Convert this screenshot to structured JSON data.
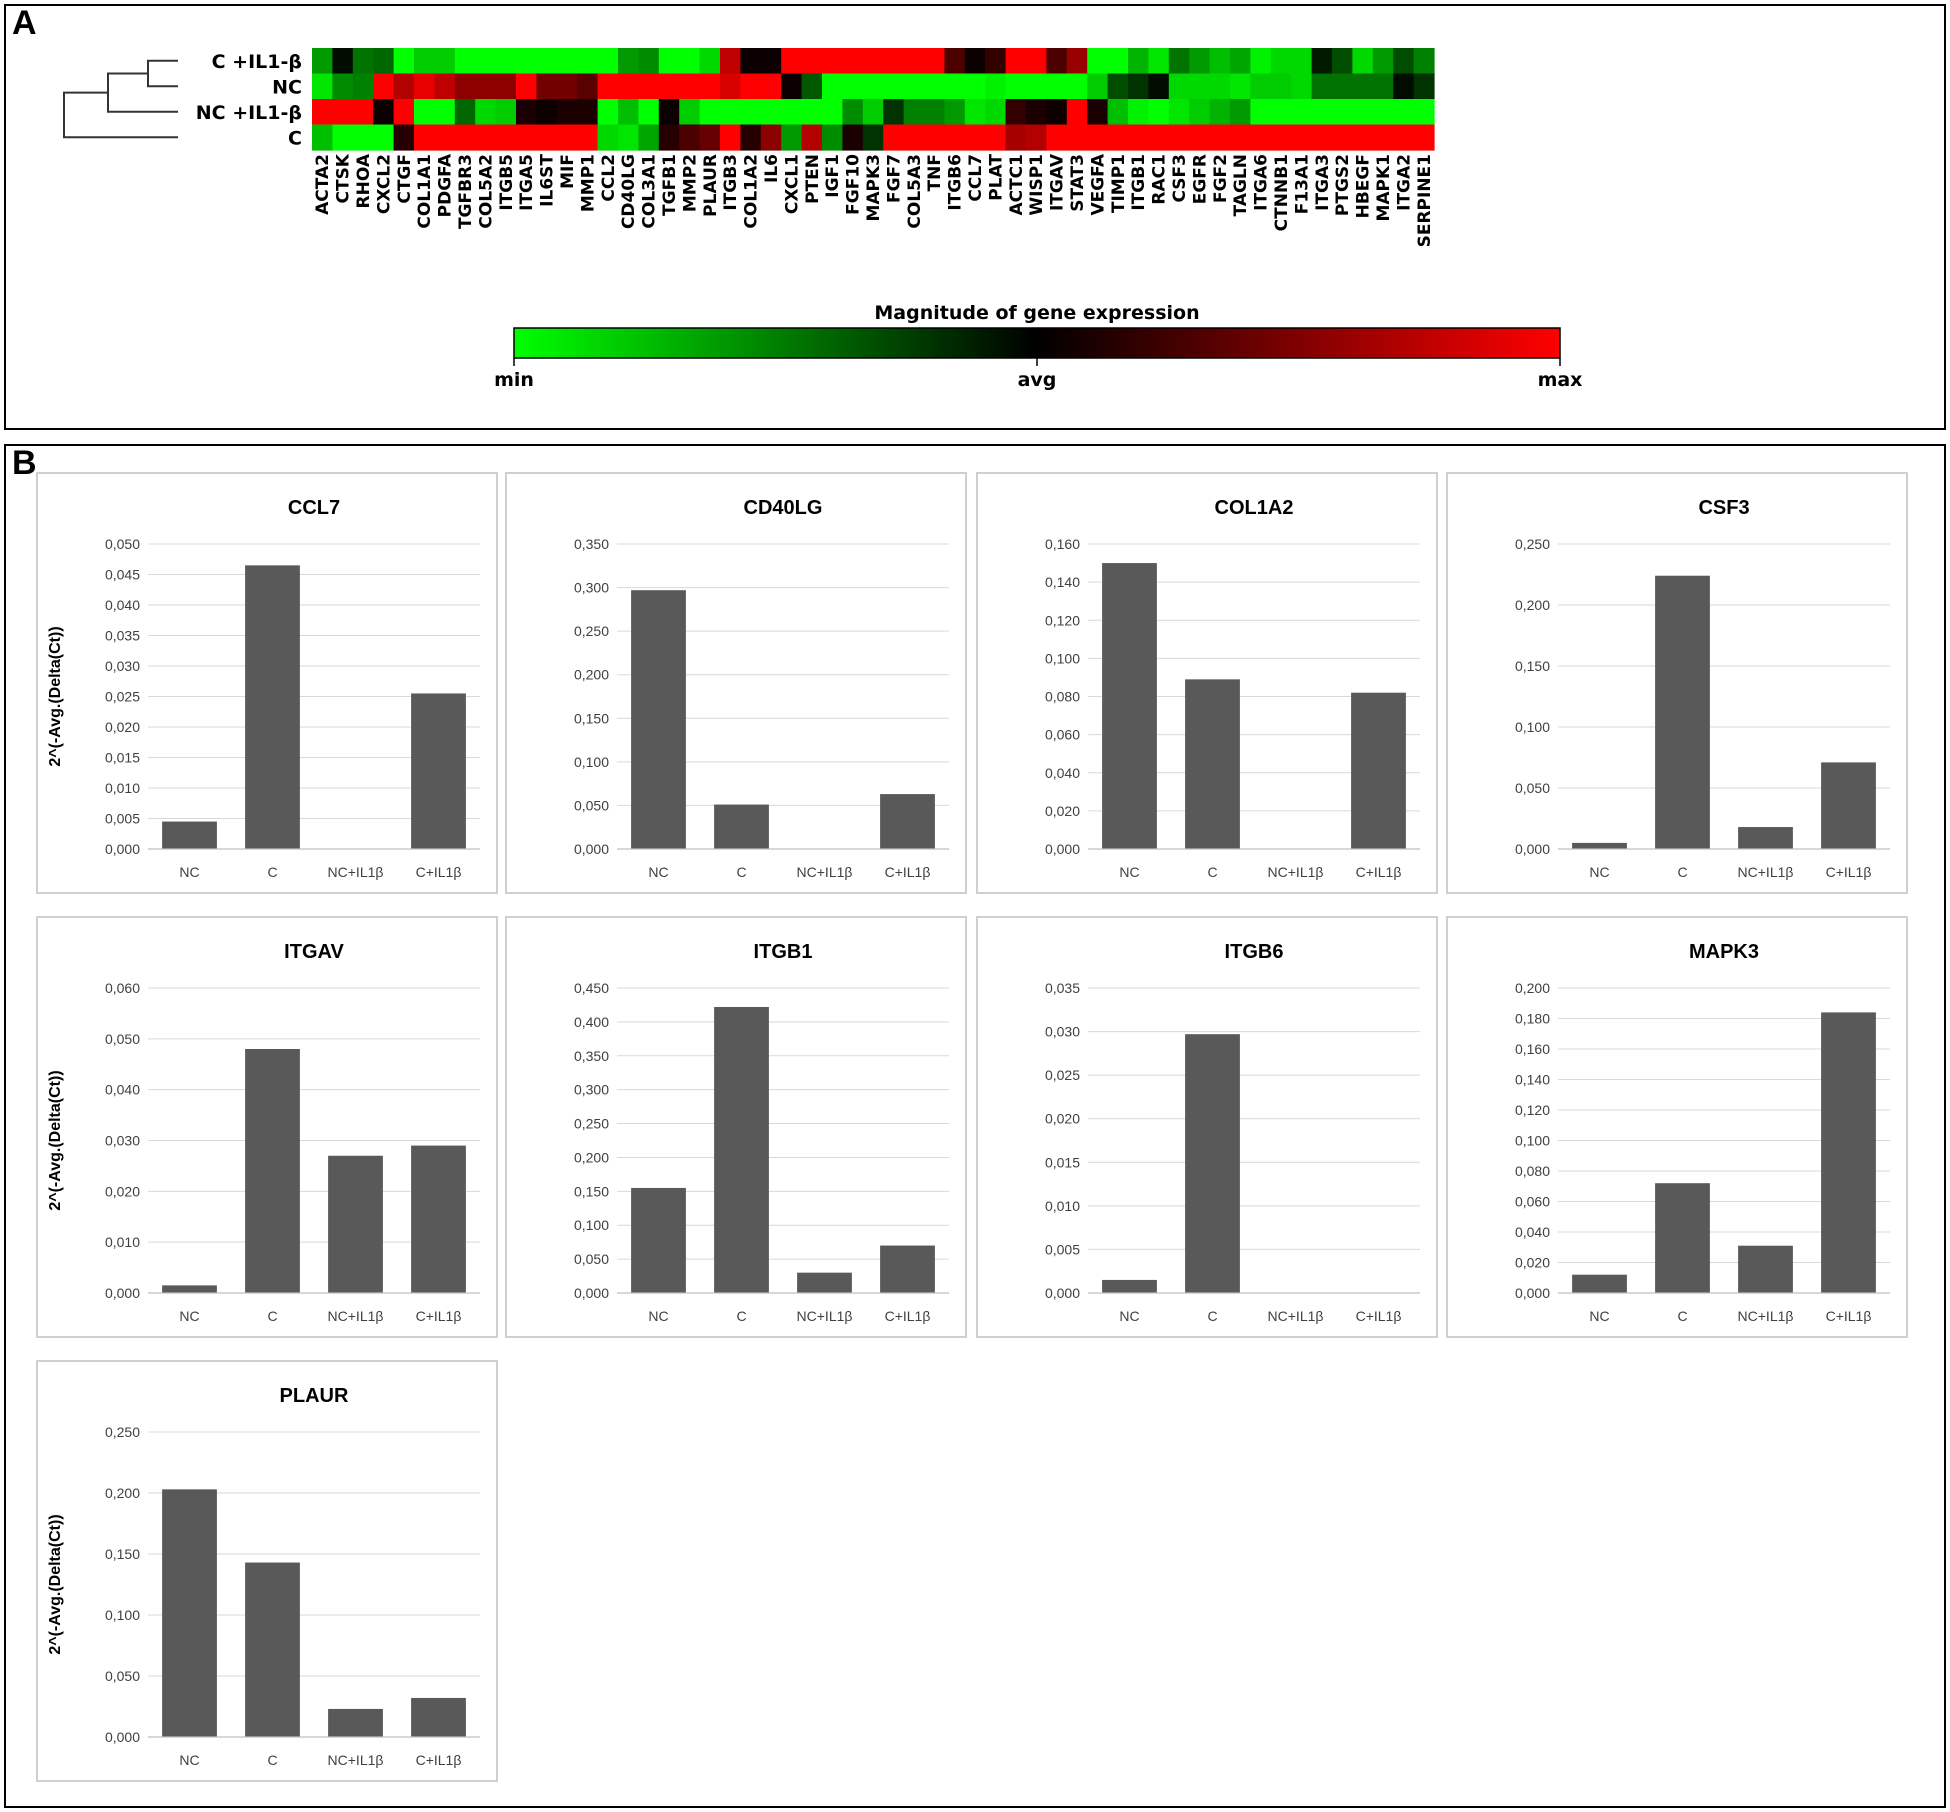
{
  "panel_a": {
    "label": "A",
    "heatmap": {
      "rows": [
        "C +IL1-β",
        "NC",
        "NC +IL1-β",
        "C"
      ],
      "genes": [
        "ACTA2",
        "CTSK",
        "RHOA",
        "CXCL2",
        "CTGF",
        "COL1A1",
        "PDGFA",
        "TGFBR3",
        "COL5A2",
        "ITGB5",
        "ITGA5",
        "IL6ST",
        "MIF",
        "MMP1",
        "CCL2",
        "CD40LG",
        "COL3A1",
        "TGFB1",
        "MMP2",
        "PLAUR",
        "ITGB3",
        "COL1A2",
        "IL6",
        "CXCL1",
        "PTEN",
        "IGF1",
        "FGF10",
        "MAPK3",
        "FGF7",
        "COL5A3",
        "TNF",
        "ITGB6",
        "CCL7",
        "PLAT",
        "ACTC1",
        "WISP1",
        "ITGAV",
        "STAT3",
        "VEGFA",
        "TIMP1",
        "ITGB1",
        "RAC1",
        "CSF3",
        "EGFR",
        "FGF2",
        "TAGLN",
        "ITGA6",
        "CTNNB1",
        "F13A1",
        "ITGA3",
        "PTGS2",
        "HBEGF",
        "MAPK1",
        "ITGA2",
        "SERPINE1"
      ],
      "scale_note": "values -1 (min, green) .. 0 (avg, black) .. 1 (max, red)",
      "values": [
        [
          -0.6,
          -0.05,
          -0.45,
          -0.4,
          -1,
          -0.8,
          -0.8,
          -1,
          -1,
          -1,
          -1,
          -1,
          -1,
          -1,
          -1,
          -0.6,
          -0.55,
          -1,
          -1,
          -0.85,
          0.75,
          0.05,
          0.05,
          1,
          1,
          1,
          1,
          1,
          1,
          1,
          1,
          0.3,
          0.05,
          0.2,
          1,
          1,
          0.3,
          0.6,
          -1,
          -1,
          -0.7,
          -0.9,
          -0.45,
          -0.6,
          -0.75,
          -0.65,
          -0.95,
          -0.85,
          -0.85,
          -0.1,
          -0.3,
          -0.85,
          -0.6,
          -0.3,
          -0.5
        ],
        [
          -0.9,
          -0.55,
          -0.5,
          1,
          0.7,
          0.9,
          0.75,
          0.55,
          0.55,
          0.55,
          1,
          0.45,
          0.45,
          0.35,
          1,
          1,
          1,
          1,
          1,
          1,
          0.85,
          1,
          1,
          0.05,
          -0.35,
          -1,
          -1,
          -1,
          -1,
          -1,
          -1,
          -1,
          -1,
          -0.95,
          -1,
          -1,
          -1,
          -1,
          -0.8,
          -0.3,
          -0.2,
          -0.05,
          -0.85,
          -0.85,
          -0.85,
          -0.9,
          -0.8,
          -0.8,
          -0.85,
          -0.45,
          -0.45,
          -0.45,
          -0.45,
          -0.05,
          -0.2
        ],
        [
          1,
          1,
          1,
          0.05,
          1,
          -1,
          -1,
          -0.4,
          -0.85,
          -0.8,
          0.1,
          0.05,
          0.1,
          0.1,
          -1,
          -0.75,
          -1,
          0.05,
          -0.8,
          -1,
          -1,
          -1,
          -1,
          -1,
          -1,
          -1,
          -0.55,
          -0.8,
          -0.2,
          -0.5,
          -0.5,
          -0.6,
          -0.9,
          -0.85,
          0.2,
          0.1,
          0.05,
          1,
          0.1,
          -0.75,
          -0.95,
          -1,
          -0.9,
          -0.8,
          -0.7,
          -0.6,
          -1,
          -1,
          -1,
          -1,
          -1,
          -1,
          -1,
          -1,
          -1
        ],
        [
          -0.75,
          -1,
          -1,
          -1,
          0.15,
          1,
          1,
          1,
          1,
          1,
          1,
          1,
          1,
          1,
          -0.85,
          -0.9,
          -0.65,
          0.15,
          0.3,
          0.4,
          1,
          0.15,
          0.55,
          -0.6,
          0.7,
          -0.55,
          0.1,
          -0.2,
          1,
          1,
          1,
          1,
          1,
          1,
          0.65,
          0.7,
          1,
          1,
          1,
          1,
          1,
          1,
          1,
          1,
          1,
          1,
          1,
          1,
          1,
          1,
          1,
          1,
          1,
          1,
          1
        ]
      ],
      "tree": true
    },
    "color_scale": {
      "title": "Magnitude of gene expression",
      "labels": [
        "min",
        "avg",
        "max"
      ],
      "colors": [
        "#00ff00",
        "#000000",
        "#ff0000"
      ]
    }
  },
  "panel_b": {
    "label": "B",
    "bar_color": "#595959",
    "grid_color": "#d9d9d9",
    "y_axis_label": "2^(-Avg.(Delta(Ct))"
  },
  "chart_data": [
    {
      "type": "bar",
      "title": "CCL7",
      "categories": [
        "NC",
        "C",
        "NC+IL1β",
        "C+IL1β"
      ],
      "values": [
        0.0045,
        0.0465,
        0.0,
        0.0255
      ],
      "ylim": [
        0,
        0.05
      ],
      "yticks": [
        "0,000",
        "0,005",
        "0,010",
        "0,015",
        "0,020",
        "0,025",
        "0,030",
        "0,035",
        "0,040",
        "0,045",
        "0,050"
      ],
      "ylabel": "2^(-Avg.(Delta(Ct))",
      "grid": true
    },
    {
      "type": "bar",
      "title": "CD40LG",
      "categories": [
        "NC",
        "C",
        "NC+IL1β",
        "C+IL1β"
      ],
      "values": [
        0.297,
        0.051,
        0.0,
        0.063
      ],
      "ylim": [
        0,
        0.35
      ],
      "yticks": [
        "0,000",
        "0,050",
        "0,100",
        "0,150",
        "0,200",
        "0,250",
        "0,300",
        "0,350"
      ],
      "ylabel": "",
      "grid": true
    },
    {
      "type": "bar",
      "title": "COL1A2",
      "categories": [
        "NC",
        "C",
        "NC+IL1β",
        "C+IL1β"
      ],
      "values": [
        0.15,
        0.089,
        0.0,
        0.082
      ],
      "ylim": [
        0,
        0.16
      ],
      "yticks": [
        "0,000",
        "0,020",
        "0,040",
        "0,060",
        "0,080",
        "0,100",
        "0,120",
        "0,140",
        "0,160"
      ],
      "ylabel": "",
      "grid": true
    },
    {
      "type": "bar",
      "title": "CSF3",
      "categories": [
        "NC",
        "C",
        "NC+IL1β",
        "C+IL1β"
      ],
      "values": [
        0.005,
        0.224,
        0.018,
        0.071
      ],
      "ylim": [
        0,
        0.25
      ],
      "yticks": [
        "0,000",
        "0,050",
        "0,100",
        "0,150",
        "0,200",
        "0,250"
      ],
      "ylabel": "",
      "grid": true
    },
    {
      "type": "bar",
      "title": "ITGAV",
      "categories": [
        "NC",
        "C",
        "NC+IL1β",
        "C+IL1β"
      ],
      "values": [
        0.0015,
        0.048,
        0.027,
        0.029
      ],
      "ylim": [
        0,
        0.06
      ],
      "yticks": [
        "0,000",
        "0,010",
        "0,020",
        "0,030",
        "0,040",
        "0,050",
        "0,060"
      ],
      "ylabel": "2^(-Avg.(Delta(Ct))",
      "grid": true
    },
    {
      "type": "bar",
      "title": "ITGB1",
      "categories": [
        "NC",
        "C",
        "NC+IL1β",
        "C+IL1β"
      ],
      "values": [
        0.155,
        0.422,
        0.03,
        0.07
      ],
      "ylim": [
        0,
        0.45
      ],
      "yticks": [
        "0,000",
        "0,050",
        "0,100",
        "0,150",
        "0,200",
        "0,250",
        "0,300",
        "0,350",
        "0,400",
        "0,450"
      ],
      "ylabel": "",
      "grid": true
    },
    {
      "type": "bar",
      "title": "ITGB6",
      "categories": [
        "NC",
        "C",
        "NC+IL1β",
        "C+IL1β"
      ],
      "values": [
        0.0015,
        0.0297,
        0.0,
        0.0
      ],
      "ylim": [
        0,
        0.035
      ],
      "yticks": [
        "0,000",
        "0,005",
        "0,010",
        "0,015",
        "0,020",
        "0,025",
        "0,030",
        "0,035"
      ],
      "ylabel": "",
      "grid": true
    },
    {
      "type": "bar",
      "title": "MAPK3",
      "categories": [
        "NC",
        "C",
        "NC+IL1β",
        "C+IL1β"
      ],
      "values": [
        0.012,
        0.072,
        0.031,
        0.184
      ],
      "ylim": [
        0,
        0.2
      ],
      "yticks": [
        "0,000",
        "0,020",
        "0,040",
        "0,060",
        "0,080",
        "0,100",
        "0,120",
        "0,140",
        "0,160",
        "0,180",
        "0,200"
      ],
      "ylabel": "",
      "grid": true
    },
    {
      "type": "bar",
      "title": "PLAUR",
      "categories": [
        "NC",
        "C",
        "NC+IL1β",
        "C+IL1β"
      ],
      "values": [
        0.203,
        0.143,
        0.023,
        0.032
      ],
      "ylim": [
        0,
        0.25
      ],
      "yticks": [
        "0,000",
        "0,050",
        "0,100",
        "0,150",
        "0,200",
        "0,250"
      ],
      "ylabel": "2^(-Avg.(Delta(Ct))",
      "grid": true
    }
  ]
}
